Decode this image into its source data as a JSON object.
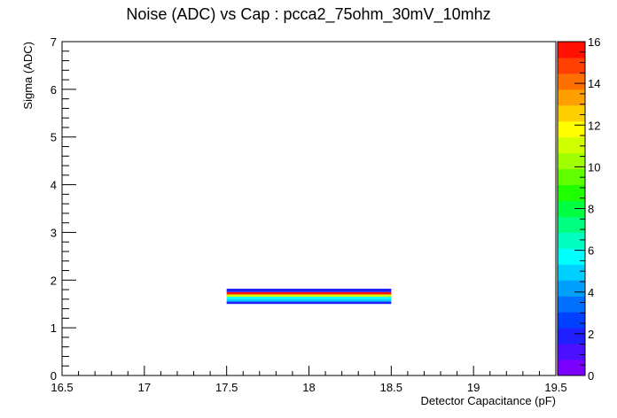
{
  "chart_data": {
    "type": "heatmap",
    "title": "Noise (ADC) vs Cap : pcca2_75ohm_30mV_10mhz",
    "xlabel": "Detector Capacitance (pF)",
    "ylabel": "Sigma (ADC)",
    "xlim": [
      16.5,
      19.5
    ],
    "ylim": [
      0,
      7
    ],
    "x_ticks": [
      "16.5",
      "17",
      "17.5",
      "18",
      "18.5",
      "19",
      "19.5"
    ],
    "y_ticks": [
      "0",
      "1",
      "2",
      "3",
      "4",
      "5",
      "6",
      "7"
    ],
    "grid": false,
    "cells": [
      {
        "x0": 17.5,
        "x1": 18.5,
        "y0": 1.5,
        "y1": 1.55,
        "z": 2
      },
      {
        "x0": 17.5,
        "x1": 18.5,
        "y0": 1.55,
        "y1": 1.6,
        "z": 5
      },
      {
        "x0": 17.5,
        "x1": 18.5,
        "y0": 1.6,
        "y1": 1.65,
        "z": 6
      },
      {
        "x0": 17.5,
        "x1": 18.5,
        "y0": 1.65,
        "y1": 1.7,
        "z": 11
      },
      {
        "x0": 17.5,
        "x1": 18.5,
        "y0": 1.7,
        "y1": 1.75,
        "z": 16
      },
      {
        "x0": 17.5,
        "x1": 18.5,
        "y0": 1.75,
        "y1": 1.82,
        "z": 2
      }
    ],
    "colorbar": {
      "zlim": [
        0,
        16
      ],
      "ticks": [
        "0",
        "2",
        "4",
        "6",
        "8",
        "10",
        "12",
        "14",
        "16"
      ],
      "colors": [
        "#7a00ff",
        "#4a10ff",
        "#2020ff",
        "#0040ff",
        "#0070ff",
        "#00a0ff",
        "#00d0ff",
        "#00ffff",
        "#00ffc0",
        "#00ff80",
        "#00ff40",
        "#20ff00",
        "#60ff00",
        "#a0ff00",
        "#d0ff00",
        "#ffff00",
        "#ffd000",
        "#ffa000",
        "#ff7000",
        "#ff4000",
        "#ff1000"
      ]
    }
  }
}
